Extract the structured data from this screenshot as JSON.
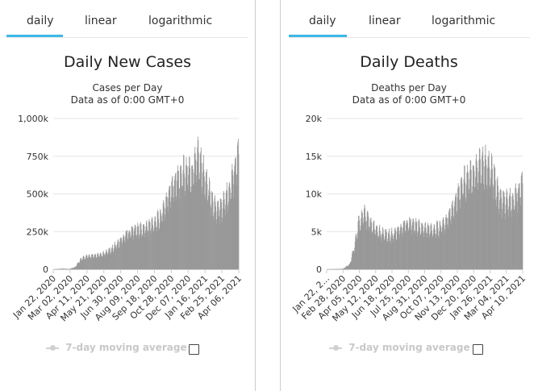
{
  "tabs": [
    "daily",
    "linear",
    "logarithmic"
  ],
  "legend_label": "7-day moving average",
  "colors": {
    "bar": "#999999",
    "accent": "#3cb9e8",
    "axis": "#cccccc",
    "grid": "#e6e6e6"
  },
  "chart_data": [
    {
      "type": "bar",
      "title": "Daily New Cases",
      "subtitle": "Cases per Day",
      "subtitle2": "Data as of 0:00 GMT+0",
      "xlabel": "",
      "ylabel": "",
      "ylim": [
        0,
        1000000
      ],
      "yticks": [
        "0",
        "250k",
        "500k",
        "750k",
        "1,000k"
      ],
      "xticks": [
        "Jan 22, 2020",
        "Mar 02, 2020",
        "Apr 11, 2020",
        "May 21, 2020",
        "Jun 30, 2020",
        "Aug 09, 2020",
        "Sep 18, 2020",
        "Oct 28, 2020",
        "Dec 07, 2020",
        "Jan 16, 2021",
        "Feb 25, 2021",
        "Apr 06, 2021"
      ],
      "x_start": "2020-01-22",
      "x_end": "2021-04-19",
      "keypoints": [
        [
          "2020-01-22",
          600
        ],
        [
          "2020-02-13",
          4000
        ],
        [
          "2020-03-01",
          2000
        ],
        [
          "2020-03-15",
          15000
        ],
        [
          "2020-03-28",
          65000
        ],
        [
          "2020-04-11",
          85000
        ],
        [
          "2020-05-01",
          88000
        ],
        [
          "2020-05-21",
          100000
        ],
        [
          "2020-06-10",
          130000
        ],
        [
          "2020-06-30",
          180000
        ],
        [
          "2020-07-20",
          240000
        ],
        [
          "2020-08-09",
          265000
        ],
        [
          "2020-08-29",
          270000
        ],
        [
          "2020-09-18",
          300000
        ],
        [
          "2020-10-08",
          340000
        ],
        [
          "2020-10-28",
          480000
        ],
        [
          "2020-11-10",
          580000
        ],
        [
          "2020-11-25",
          620000
        ],
        [
          "2020-12-07",
          650000
        ],
        [
          "2020-12-25",
          640000
        ],
        [
          "2021-01-08",
          780000
        ],
        [
          "2021-01-16",
          710000
        ],
        [
          "2021-01-30",
          580000
        ],
        [
          "2021-02-12",
          450000
        ],
        [
          "2021-02-25",
          400000
        ],
        [
          "2021-03-10",
          420000
        ],
        [
          "2021-03-25",
          520000
        ],
        [
          "2021-04-06",
          640000
        ],
        [
          "2021-04-19",
          770000
        ]
      ]
    },
    {
      "type": "bar",
      "title": "Daily Deaths",
      "subtitle": "Deaths per Day",
      "subtitle2": "Data as of 0:00 GMT+0",
      "xlabel": "",
      "ylabel": "",
      "ylim": [
        0,
        20000
      ],
      "yticks": [
        "0",
        "5k",
        "10k",
        "15k",
        "20k"
      ],
      "xticks": [
        "Jan 22, 2...",
        "Feb 28, 2020",
        "Apr 05, 2020",
        "May 12, 2020",
        "Jun 18, 2020",
        "Jul 25, 2020",
        "Aug 31, 2020",
        "Oct 07, 2020",
        "Nov 13, 2020",
        "Dec 20, 2020",
        "Jan 26, 2021",
        "Mar 04, 2021",
        "Apr 10, 2021"
      ],
      "x_start": "2020-01-22",
      "x_end": "2021-04-19",
      "keypoints": [
        [
          "2020-01-22",
          10
        ],
        [
          "2020-02-28",
          60
        ],
        [
          "2020-03-15",
          700
        ],
        [
          "2020-03-25",
          3000
        ],
        [
          "2020-04-05",
          6200
        ],
        [
          "2020-04-18",
          7500
        ],
        [
          "2020-05-01",
          6000
        ],
        [
          "2020-05-20",
          5000
        ],
        [
          "2020-06-10",
          4600
        ],
        [
          "2020-06-25",
          4700
        ],
        [
          "2020-07-10",
          5500
        ],
        [
          "2020-07-25",
          6200
        ],
        [
          "2020-08-10",
          6000
        ],
        [
          "2020-08-31",
          5500
        ],
        [
          "2020-09-20",
          5300
        ],
        [
          "2020-10-07",
          5500
        ],
        [
          "2020-10-25",
          6500
        ],
        [
          "2020-11-13",
          9000
        ],
        [
          "2020-12-01",
          11500
        ],
        [
          "2020-12-20",
          12500
        ],
        [
          "2021-01-10",
          14200
        ],
        [
          "2021-01-26",
          14000
        ],
        [
          "2021-02-10",
          12500
        ],
        [
          "2021-02-25",
          9500
        ],
        [
          "2021-03-10",
          9000
        ],
        [
          "2021-03-25",
          9300
        ],
        [
          "2021-04-10",
          10500
        ],
        [
          "2021-04-19",
          11500
        ]
      ]
    }
  ]
}
